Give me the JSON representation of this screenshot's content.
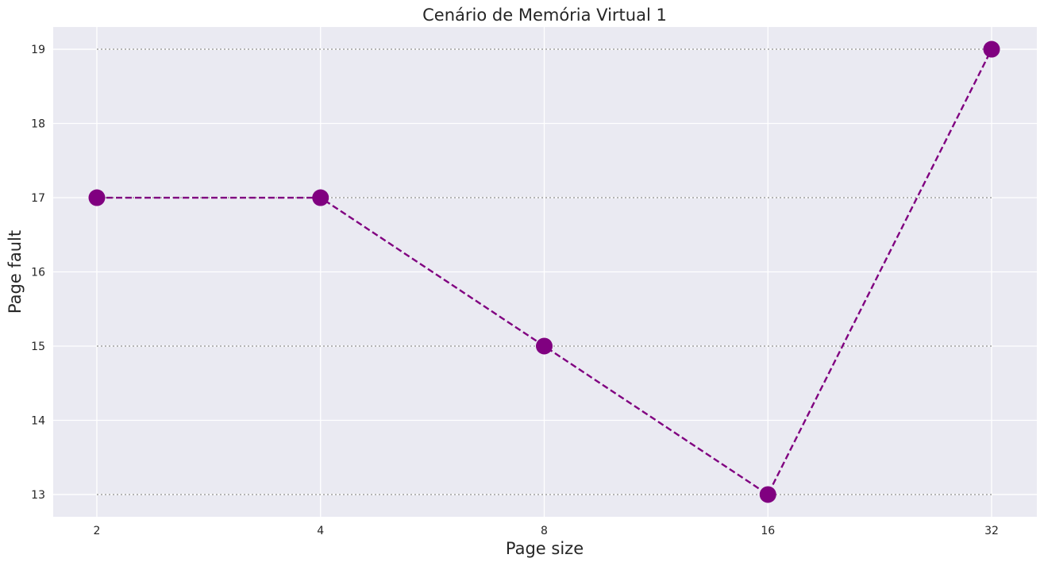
{
  "chart_data": {
    "type": "line",
    "title": "Cenário de Memória Virtual 1",
    "xlabel": "Page size",
    "ylabel": "Page fault",
    "categories": [
      "2",
      "4",
      "8",
      "16",
      "32"
    ],
    "x_scale": "categorical (log2 spacing)",
    "ylim": [
      12.7,
      19.3
    ],
    "y_ticks": [
      "13",
      "14",
      "15",
      "16",
      "17",
      "18",
      "19"
    ],
    "series": [
      {
        "values": [
          17,
          17,
          15,
          13,
          19
        ],
        "color": "#800080",
        "line_style": "dashed",
        "marker": "circle"
      }
    ],
    "reference_lines": [
      19,
      17,
      15,
      13
    ],
    "reference_line_color": "#a9a9a9",
    "reference_line_style": "dotted",
    "grid": true,
    "background_color": "#eaeaf2",
    "grid_color": "#ffffff",
    "legend": "none"
  }
}
